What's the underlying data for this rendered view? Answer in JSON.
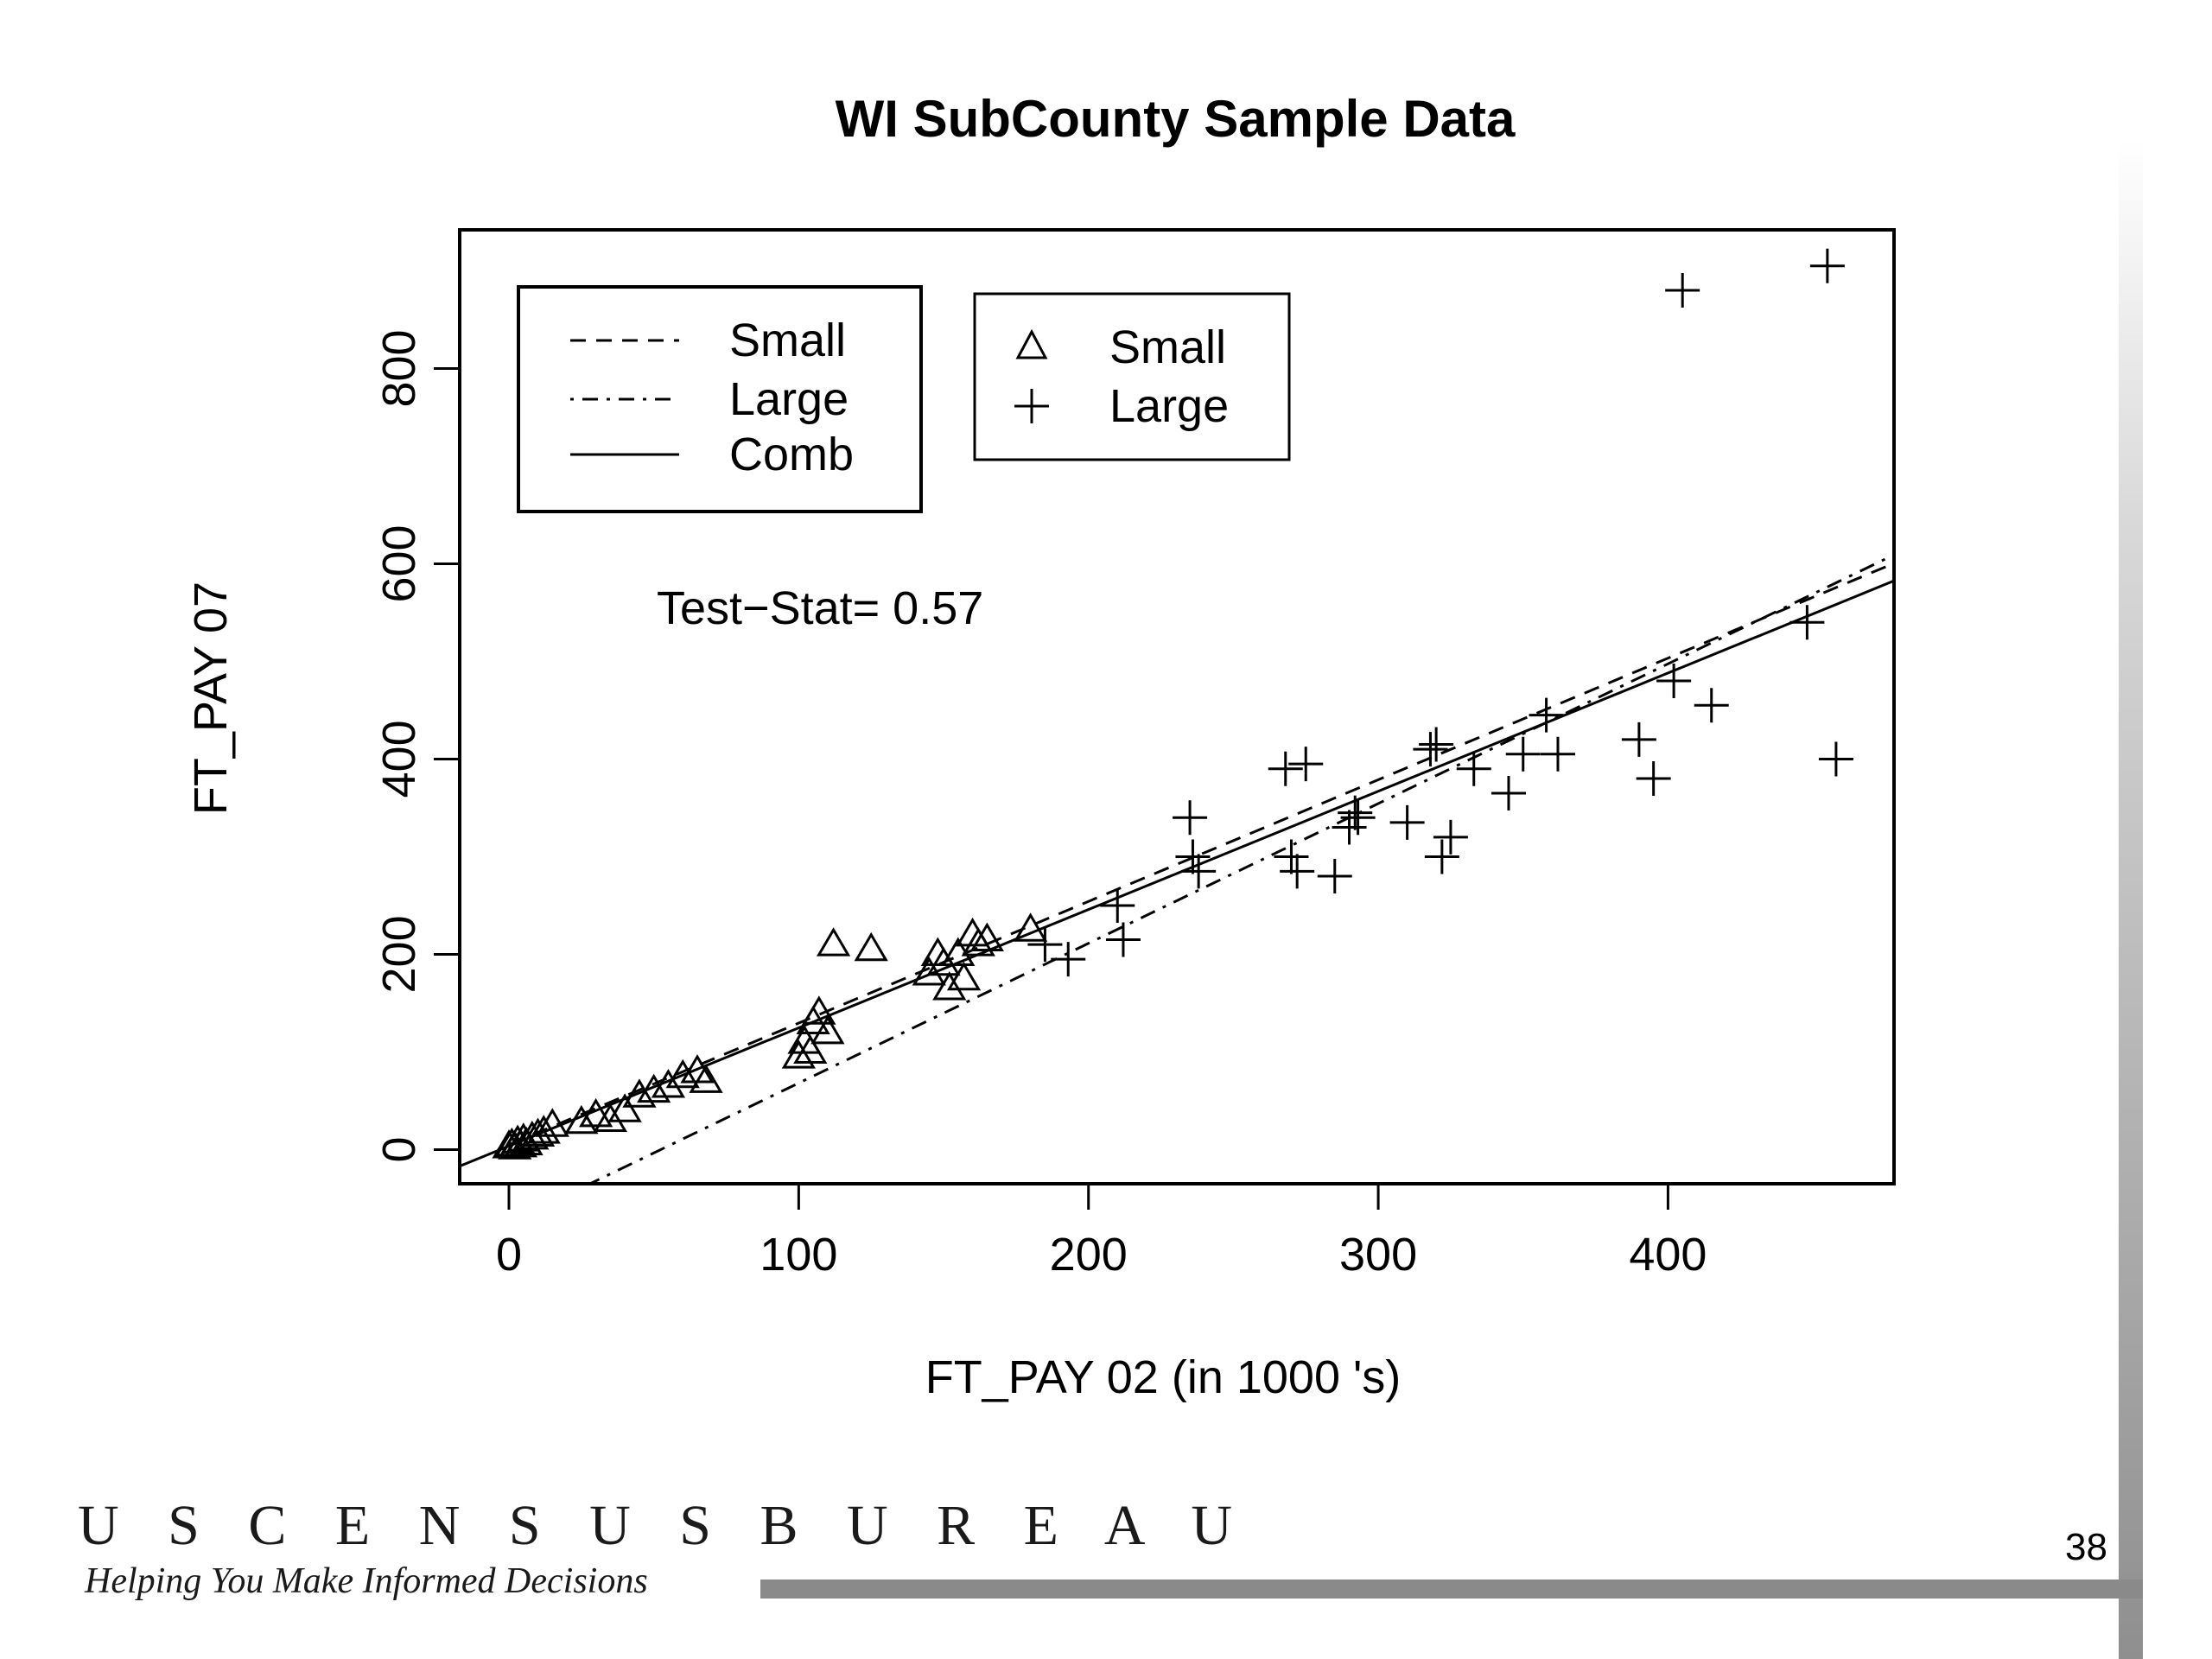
{
  "chart_data": {
    "type": "scatter",
    "title": "WI SubCounty Sample Data",
    "xlabel": "FT_PAY 02 (in  1000 's)",
    "ylabel": "FT_PAY 07",
    "xlim": [
      -17,
      478
    ],
    "ylim": [
      -35,
      942
    ],
    "xticks": [
      "0",
      "100",
      "200",
      "300",
      "400"
    ],
    "yticks": [
      "0",
      "200",
      "400",
      "600",
      "800"
    ],
    "annotation": "Test−Stat= 0.57",
    "line_legend": {
      "placement": "top-left",
      "entries": [
        {
          "label": "Small",
          "style": "dashed"
        },
        {
          "label": "Large",
          "style": "dotdash"
        },
        {
          "label": "Comb",
          "style": "solid"
        }
      ]
    },
    "point_legend": {
      "placement": "top-left",
      "entries": [
        {
          "label": "Small",
          "marker": "triangle"
        },
        {
          "label": "Large",
          "marker": "plus"
        }
      ]
    },
    "lines": [
      {
        "group": "Small",
        "style": "dashed",
        "x": [
          0,
          480
        ],
        "y": [
          5,
          603
        ]
      },
      {
        "group": "Large",
        "style": "dotdash",
        "x": [
          0,
          480
        ],
        "y": [
          -75,
          612
        ]
      },
      {
        "group": "Comb",
        "style": "solid",
        "x": [
          -17,
          480
        ],
        "y": [
          -17,
          585
        ]
      }
    ],
    "series": [
      {
        "name": "Small",
        "marker": "triangle",
        "x": [
          0,
          1,
          2,
          3,
          4,
          5,
          6,
          8,
          10,
          12,
          15,
          25,
          30,
          35,
          40,
          45,
          50,
          55,
          60,
          65,
          68,
          100,
          102,
          104,
          105,
          107,
          110,
          112,
          125,
          145,
          148,
          150,
          152,
          155,
          157,
          160,
          162,
          165,
          180
        ],
        "y": [
          3,
          5,
          2,
          8,
          4,
          10,
          6,
          12,
          15,
          18,
          25,
          28,
          35,
          30,
          40,
          55,
          60,
          65,
          75,
          80,
          70,
          95,
          110,
          100,
          130,
          140,
          120,
          210,
          205,
          180,
          200,
          190,
          165,
          200,
          175,
          220,
          210,
          215,
          225
        ]
      },
      {
        "name": "Large",
        "marker": "plus",
        "x": [
          185,
          193,
          210,
          212,
          235,
          236,
          238,
          268,
          270,
          272,
          275,
          285,
          290,
          292,
          293,
          310,
          318,
          320,
          322,
          325,
          333,
          345,
          350,
          358,
          362,
          390,
          395,
          402,
          405,
          415,
          448,
          455,
          458
        ],
        "y": [
          210,
          195,
          250,
          215,
          340,
          300,
          285,
          390,
          300,
          285,
          395,
          280,
          330,
          345,
          340,
          335,
          410,
          415,
          300,
          320,
          390,
          365,
          405,
          445,
          405,
          420,
          380,
          480,
          880,
          455,
          540,
          905,
          400
        ]
      }
    ]
  },
  "footer": {
    "brand": "U S C E N S U S B U R E A U",
    "tagline": "Helping You Make Informed Decisions",
    "page_number": "38"
  }
}
